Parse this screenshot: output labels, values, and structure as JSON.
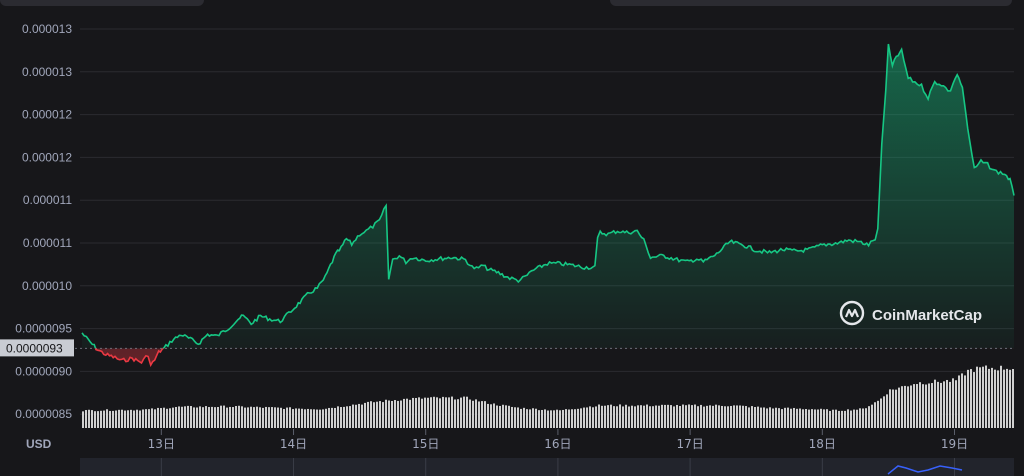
{
  "colors": {
    "background": "#17171a",
    "up": "#16c784",
    "down": "#ea3943",
    "grid": "#2b2b30",
    "label": "#a1a7bb",
    "volume": "#d0d0d0",
    "watermark": "#e5e7eb"
  },
  "watermark": {
    "text": "CoinMarketCap",
    "icon": "coinmarketcap-logo-icon"
  },
  "currency_label": "USD",
  "price_tag": "0.0000093",
  "chart_data": {
    "type": "area",
    "y_tick_labels": [
      "0.000013",
      "0.000013",
      "0.000012",
      "0.000012",
      "0.000011",
      "0.000011",
      "0.000010",
      "0.0000095",
      "0.0000090",
      "0.0000085"
    ],
    "x_tick_labels": [
      "13日",
      "14日",
      "15日",
      "16日",
      "17日",
      "18日",
      "19日"
    ],
    "x_unit": "days",
    "x_range": [
      12.4,
      19.45
    ],
    "ylim": [
      8.45e-06,
      1.345e-05
    ],
    "baseline": 9.3e-06,
    "price_series": {
      "x": [
        12.4,
        12.45,
        12.52,
        12.58,
        12.65,
        12.7,
        12.78,
        12.82,
        12.85,
        12.9,
        12.92,
        12.95,
        12.98,
        13.02,
        13.08,
        13.15,
        13.22,
        13.28,
        13.35,
        13.42,
        13.5,
        13.58,
        13.62,
        13.68,
        13.75,
        13.82,
        13.9,
        13.98,
        14.05,
        14.12,
        14.18,
        14.24,
        14.28,
        14.32,
        14.36,
        14.4,
        14.44,
        14.5,
        14.55,
        14.6,
        14.65,
        14.7,
        14.72,
        14.75,
        14.8,
        14.85,
        14.9,
        15.0,
        15.1,
        15.2,
        15.3,
        15.35,
        15.4,
        15.42,
        15.48,
        15.55,
        15.62,
        15.7,
        15.75,
        15.8,
        15.85,
        15.92,
        16.0,
        16.1,
        16.2,
        16.28,
        16.3,
        16.32,
        16.38,
        16.45,
        16.52,
        16.6,
        16.65,
        16.7,
        16.8,
        16.9,
        16.98,
        17.05,
        17.1,
        17.2,
        17.3,
        17.4,
        17.5,
        17.6,
        17.7,
        17.8,
        17.9,
        18.0,
        18.1,
        18.2,
        18.28,
        18.35,
        18.4,
        18.42,
        18.45,
        18.48,
        18.5,
        18.53,
        18.56,
        18.6,
        18.65,
        18.7,
        18.75,
        18.8,
        18.85,
        18.9,
        18.95,
        18.97,
        18.99,
        19.02,
        19.06,
        19.1,
        19.15,
        19.2,
        19.25,
        19.3,
        19.38,
        19.42,
        19.45
      ],
      "y": [
        9.5e-06,
        9.4e-06,
        9.28e-06,
        9.22e-06,
        9.18e-06,
        9.14e-06,
        9.17e-06,
        9.14e-06,
        9.12e-06,
        9.22e-06,
        9.08e-06,
        9.15e-06,
        9.25e-06,
        9.3e-06,
        9.4e-06,
        9.48e-06,
        9.42e-06,
        9.36e-06,
        9.48e-06,
        9.46e-06,
        9.55e-06,
        9.68e-06,
        9.72e-06,
        9.62e-06,
        9.72e-06,
        9.68e-06,
        9.65e-06,
        9.78e-06,
        9.9e-06,
        1.002e-05,
        1.008e-05,
        1.022e-05,
        1.038e-05,
        1.052e-05,
        1.06e-05,
        1.072e-05,
        1.065e-05,
        1.078e-05,
        1.082e-05,
        1.088e-05,
        1.095e-05,
        1.115e-05,
        1.02e-05,
        1.045e-05,
        1.05e-05,
        1.042e-05,
        1.048e-05,
        1.044e-05,
        1.046e-05,
        1.048e-05,
        1.045e-05,
        1.035e-05,
        1.033e-05,
        1.038e-05,
        1.032e-05,
        1.028e-05,
        1.022e-05,
        1.018e-05,
        1.022e-05,
        1.03e-05,
        1.034e-05,
        1.04e-05,
        1.04e-05,
        1.038e-05,
        1.035e-05,
        1.035e-05,
        1.072e-05,
        1.08e-05,
        1.078e-05,
        1.082e-05,
        1.08e-05,
        1.082e-05,
        1.07e-05,
        1.048e-05,
        1.05e-05,
        1.045e-05,
        1.042e-05,
        1.046e-05,
        1.042e-05,
        1.052e-05,
        1.068e-05,
        1.064e-05,
        1.057e-05,
        1.054e-05,
        1.058e-05,
        1.056e-05,
        1.058e-05,
        1.064e-05,
        1.066e-05,
        1.07e-05,
        1.068e-05,
        1.064e-05,
        1.072e-05,
        1.085e-05,
        1.195e-05,
        1.265e-05,
        1.322e-05,
        1.295e-05,
        1.308e-05,
        1.315e-05,
        1.28e-05,
        1.275e-05,
        1.27e-05,
        1.255e-05,
        1.275e-05,
        1.272e-05,
        1.265e-05,
        1.262e-05,
        1.275e-05,
        1.285e-05,
        1.268e-05,
        1.215e-05,
        1.162e-05,
        1.172e-05,
        1.168e-05,
        1.16e-05,
        1.156e-05,
        1.148e-05,
        1.128e-05
      ]
    },
    "volume_series": {
      "x": [
        12.4,
        12.9,
        13.1,
        13.5,
        13.9,
        14.2,
        14.4,
        14.6,
        14.8,
        15.0,
        15.3,
        15.5,
        15.7,
        16.0,
        16.3,
        16.6,
        17.0,
        17.3,
        17.6,
        17.9,
        18.1,
        18.3,
        18.42,
        18.5,
        18.7,
        19.0,
        19.05,
        19.1,
        19.2,
        19.45
      ],
      "values": [
        0.35,
        0.37,
        0.42,
        0.43,
        0.4,
        0.38,
        0.45,
        0.52,
        0.57,
        0.6,
        0.6,
        0.48,
        0.4,
        0.35,
        0.45,
        0.45,
        0.45,
        0.45,
        0.4,
        0.38,
        0.35,
        0.38,
        0.55,
        0.75,
        0.9,
        0.95,
        1.05,
        1.15,
        1.2,
        1.2
      ],
      "unit": "relative"
    },
    "grid": true,
    "legend": "none"
  }
}
